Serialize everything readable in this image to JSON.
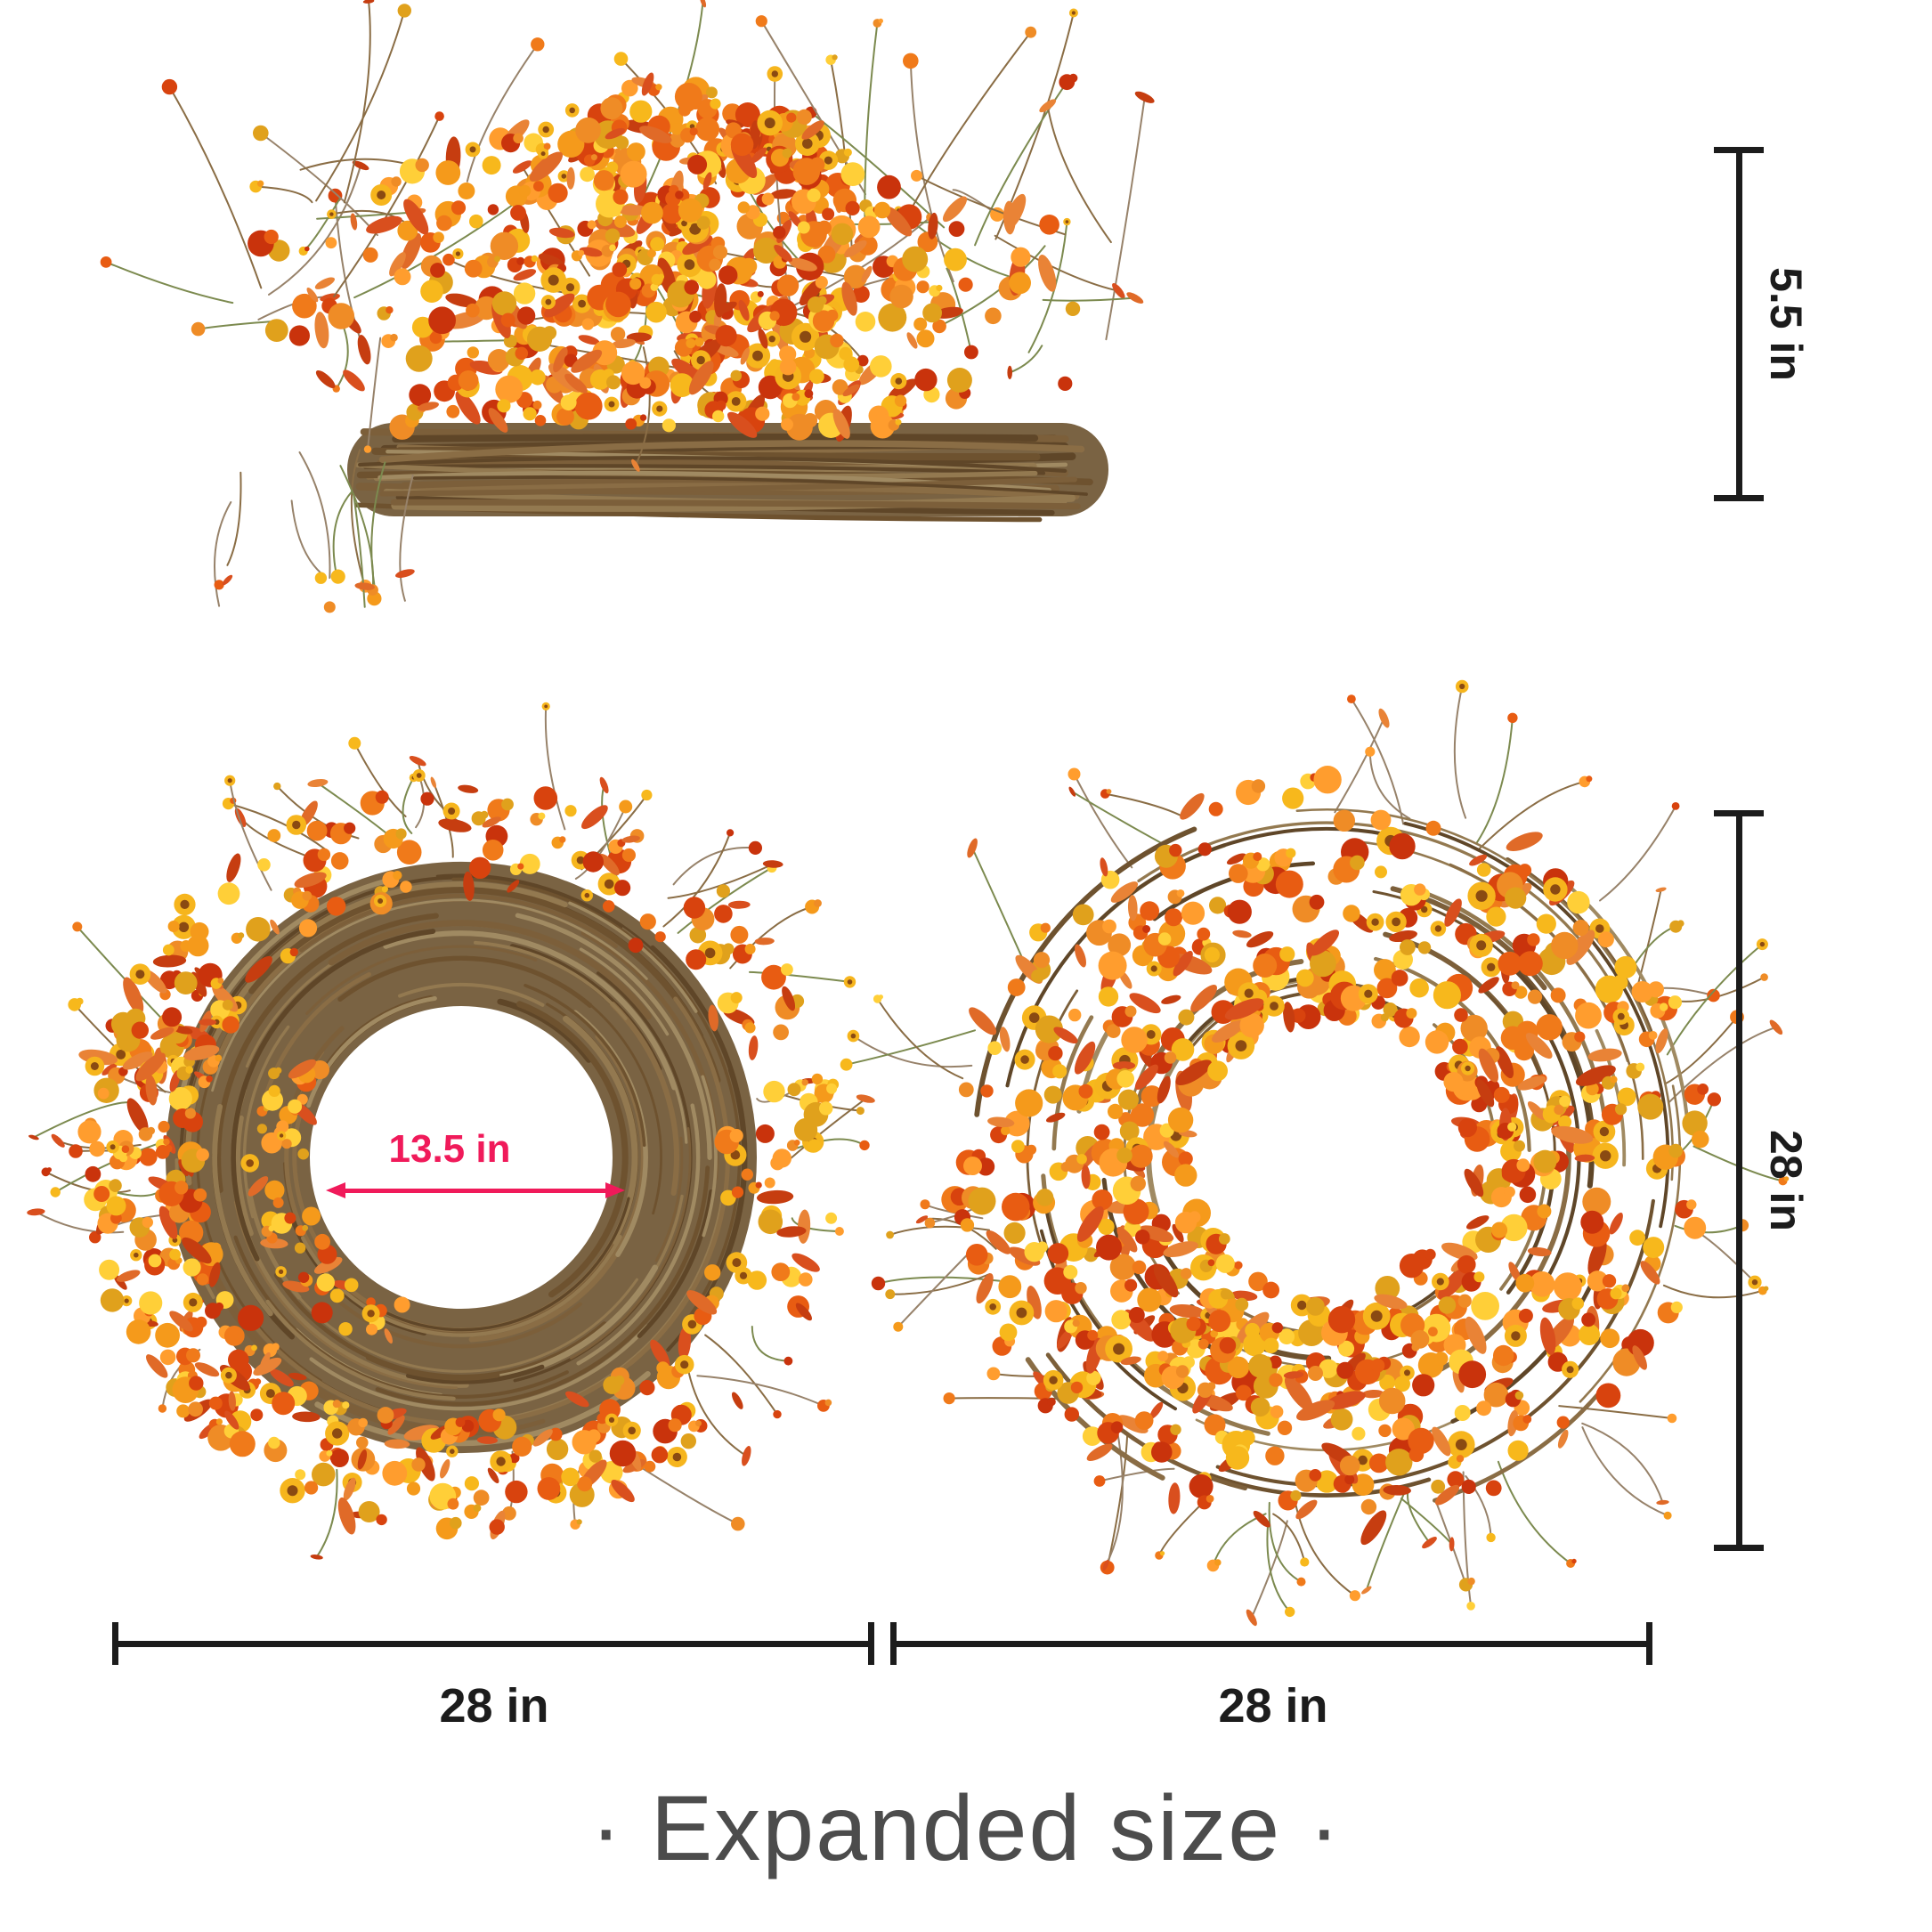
{
  "annotations": {
    "side_height_label": "5.5 in",
    "diameter_label": "28 in",
    "inner_diameter_label": "13.5 in",
    "bottom_left_width_label": "28 in",
    "bottom_right_width_label": "28 in"
  },
  "caption_text": "· Expanded size ·",
  "colors": {
    "dimension_line": "#1c1c1c",
    "inner_dimension_accent": "#f01a5a",
    "caption_text": "#4c4c4c",
    "vine_fill": "#7a6343",
    "daisy_center": "#8a4a12",
    "daisy_petal": "#f6b51d",
    "flower_palette": [
      "#e85c12",
      "#f07a1a",
      "#d8430e",
      "#f59a1b",
      "#f7b81c",
      "#ffcf38",
      "#c9330c",
      "#ef8c26",
      "#e0a11c",
      "#ff9d2e"
    ],
    "leaf_palette": [
      "#d94f1e",
      "#e06a28",
      "#c63d10",
      "#e98336"
    ],
    "twig_palette": [
      "#6e522f",
      "#7c5f3a",
      "#8a6d45",
      "#5f4628",
      "#937950",
      "#a08a62"
    ],
    "stem_palette": [
      "#8a6d45",
      "#7c8a4f",
      "#97826a"
    ]
  }
}
